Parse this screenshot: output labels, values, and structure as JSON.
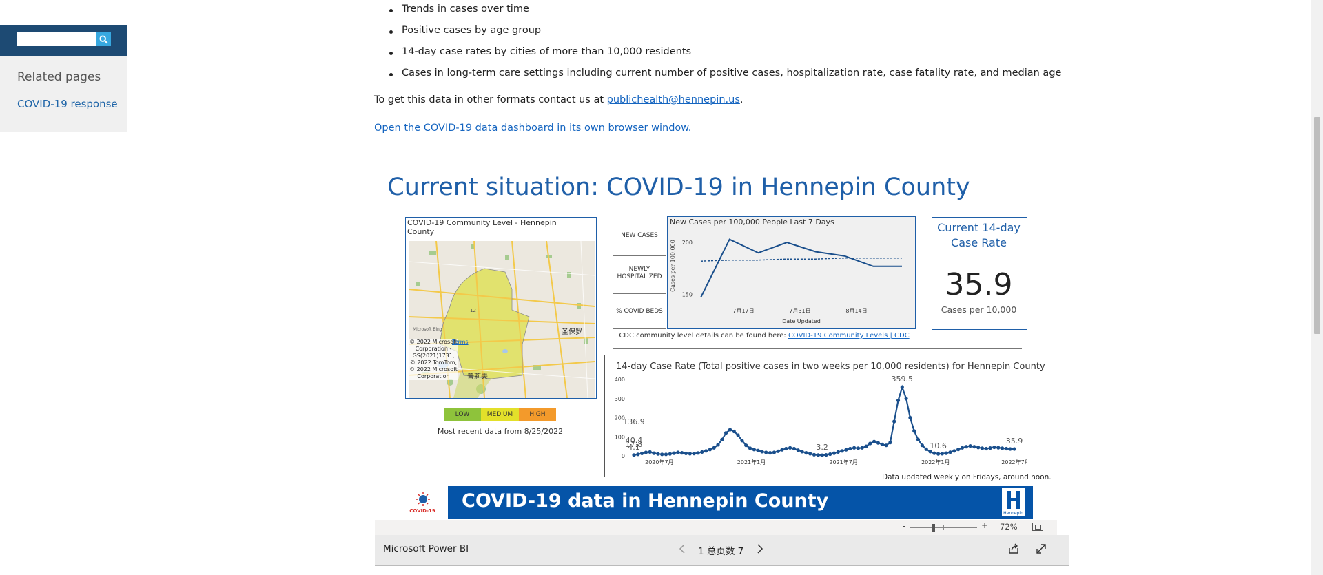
{
  "sidebar": {
    "search_placeholder": "",
    "related_title": "Related pages",
    "related_link": "COVID-19 response"
  },
  "content": {
    "bullets": [
      "Trends in cases over time",
      "Positive cases by age group",
      "14-day case rates by cities of more than 10,000 residents",
      "Cases in long-term care settings including current number of positive cases, hospitalization rate, case fatality rate, and median age"
    ],
    "contact_prefix": "To get this data in other formats contact us at ",
    "contact_email": "publichealth@hennepin.us",
    "contact_suffix": ".",
    "dashboard_link": "Open the COVID-19 data dashboard in its own browser window."
  },
  "dashboard": {
    "title": "Current situation: COVID-19 in Hennepin County",
    "map": {
      "title": "COVID-19 Community Level - Hennepin County",
      "attribution": "© 2022 Microsoft Corporation - GS(2021)1731, © 2022 TomTom, © 2022 Microsoft Corporation",
      "terms": "Terms",
      "bing": "Microsoft Bing",
      "place_east": "圣保罗",
      "place_west": "普莉夫",
      "road_label": "12",
      "legend": {
        "low": "LOW",
        "medium": "MEDIUM",
        "high": "HIGH",
        "low_color": "#8ec33b",
        "medium_color": "#e3e02a",
        "high_color": "#f39a2b"
      },
      "recent": "Most recent data from 8/25/2022"
    },
    "selector_buttons": {
      "new_cases": "NEW CASES",
      "hospitalized": "NEWLY HOSPITALIZED",
      "beds": "% COVID BEDS"
    },
    "cdc_prefix": "CDC community level details can be found here: ",
    "cdc_link": "COVID-19 Community Levels | CDC",
    "kpi": {
      "title": "Current 14-day Case Rate",
      "value": "35.9",
      "unit": "Cases per 10,000"
    },
    "data_updated": "Data updated weekly on Fridays, around noon.",
    "banner": {
      "title": "COVID-19 data in Hennepin County",
      "logo_text": "COVID-19",
      "county_logo_text": "Hennepin"
    },
    "accent_color": "#1f5fa8"
  },
  "chart_data": [
    {
      "type": "line",
      "title": "New Cases per 100,000 People Last 7 Days",
      "xlabel": "Date Updated",
      "ylabel": "Cases per 100,000",
      "x_ticks": [
        "7月17日",
        "7月31日",
        "8月14日"
      ],
      "y_ticks": [
        150,
        200
      ],
      "ylim": [
        145,
        210
      ],
      "series": [
        {
          "values": [
            147,
            203,
            190,
            200,
            191,
            187,
            177,
            177
          ],
          "style": "solid"
        },
        {
          "values": [
            182,
            183,
            183,
            184,
            184,
            185,
            185,
            185
          ],
          "style": "dashed"
        }
      ]
    },
    {
      "type": "line",
      "title": "14-day Case Rate (Total positive cases in two weeks per 10,000 residents) for Hennepin County",
      "x_ticks": [
        "2020年7月",
        "2021年1月",
        "2021年7月",
        "2022年1月",
        "2022年7月"
      ],
      "y_ticks": [
        0,
        100,
        200,
        300,
        400
      ],
      "ylim": [
        0,
        400
      ],
      "data_labels": [
        {
          "text": "4.1",
          "value": 4.1
        },
        {
          "text": "136.9",
          "value": 136.9
        },
        {
          "text": "17.8",
          "value": 17.8
        },
        {
          "text": "3.2",
          "value": 3.2
        },
        {
          "text": "40.4",
          "value": 40.4
        },
        {
          "text": "359.5",
          "value": 359.5
        },
        {
          "text": "10.6",
          "value": 10.6
        },
        {
          "text": "35.9",
          "value": 35.9
        }
      ],
      "values": [
        4.1,
        8,
        13,
        18,
        20,
        14,
        10,
        8,
        8,
        10,
        14,
        18,
        16,
        13,
        11,
        12,
        15,
        20,
        26,
        33,
        42,
        58,
        85,
        120,
        137,
        128,
        108,
        80,
        55,
        40,
        33,
        28,
        22,
        18,
        16,
        18,
        24,
        32,
        38,
        42,
        38,
        30,
        22,
        16,
        11,
        6,
        4,
        3.2,
        5,
        9,
        14,
        20,
        26,
        32,
        38,
        42,
        40,
        42,
        50,
        65,
        75,
        68,
        60,
        55,
        70,
        180,
        290,
        359.5,
        300,
        200,
        130,
        85,
        55,
        35,
        22,
        14,
        10.6,
        11,
        14,
        19,
        26,
        34,
        42,
        48,
        52,
        48,
        44,
        40,
        38,
        41,
        45,
        43,
        40,
        38,
        36,
        35.9
      ]
    }
  ],
  "powerbi": {
    "zoom_minus": "-",
    "zoom_plus": "+",
    "zoom_level": "72%",
    "zoom_fraction": 0.36,
    "brand": "Microsoft Power BI",
    "page_indicator": "1 总页数 7"
  }
}
